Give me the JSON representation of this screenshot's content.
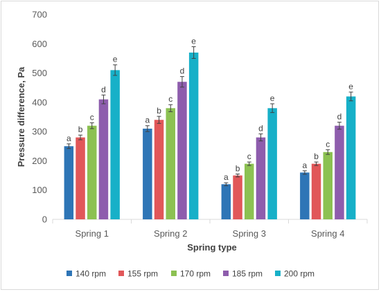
{
  "chart_data": {
    "type": "bar",
    "xlabel": "Spring type",
    "ylabel": "Pressure difference, Pa",
    "ylim": [
      0,
      700
    ],
    "yticks": [
      0,
      100,
      200,
      300,
      400,
      500,
      600,
      700
    ],
    "categories": [
      "Spring 1",
      "Spring 2",
      "Spring 3",
      "Spring 4"
    ],
    "grid": false,
    "legend_position": "bottom",
    "series": [
      {
        "name": "140 rpm",
        "color": "#2E75B6",
        "values": [
          250,
          310,
          120,
          160
        ],
        "errors": [
          8,
          10,
          5,
          6
        ],
        "labels": [
          "a",
          "a",
          "a",
          "a"
        ]
      },
      {
        "name": "155 rpm",
        "color": "#E15759",
        "values": [
          280,
          340,
          150,
          190
        ],
        "errors": [
          8,
          12,
          5,
          6
        ],
        "labels": [
          "b",
          "b",
          "b",
          "b"
        ]
      },
      {
        "name": "170 rpm",
        "color": "#8CC152",
        "values": [
          320,
          380,
          190,
          230
        ],
        "errors": [
          10,
          12,
          6,
          8
        ],
        "labels": [
          "c",
          "c",
          "c",
          "c"
        ]
      },
      {
        "name": "185 rpm",
        "color": "#8E5DAD",
        "values": [
          410,
          470,
          280,
          320
        ],
        "errors": [
          15,
          18,
          12,
          12
        ],
        "labels": [
          "d",
          "d",
          "d",
          "d"
        ]
      },
      {
        "name": "200 rpm",
        "color": "#17B0C8",
        "values": [
          510,
          570,
          380,
          420
        ],
        "errors": [
          18,
          20,
          15,
          15
        ],
        "labels": [
          "e",
          "e",
          "e",
          "e"
        ]
      }
    ]
  }
}
